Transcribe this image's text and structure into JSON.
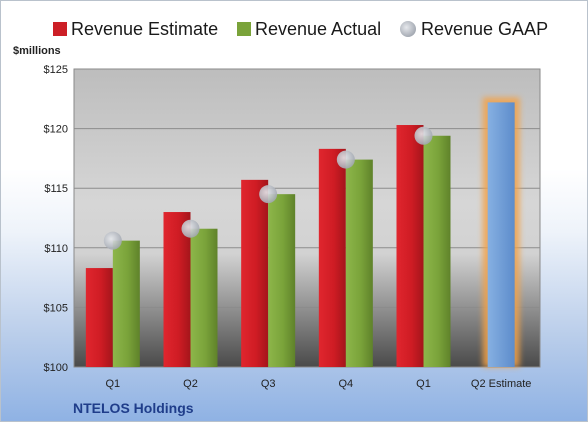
{
  "chart_data": {
    "type": "bar",
    "title": "",
    "units_label": "$millions",
    "company_label": "NTELOS Holdings",
    "categories": [
      "Q1",
      "Q2",
      "Q3",
      "Q4",
      "Q1",
      "Q2 Estimate"
    ],
    "ylim": [
      100,
      125
    ],
    "yticks": [
      "$100",
      "$105",
      "$110",
      "$115",
      "$120",
      "$125"
    ],
    "ytick_values": [
      100,
      105,
      110,
      115,
      120,
      125
    ],
    "grid": true,
    "legend_position": "top",
    "series": [
      {
        "name": "Revenue Estimate",
        "kind": "bar",
        "color": "#cc1f26",
        "values": [
          108.3,
          113.0,
          115.7,
          118.3,
          120.3,
          null
        ]
      },
      {
        "name": "Revenue Actual",
        "kind": "bar",
        "color": "#7aa33a",
        "values": [
          110.6,
          111.6,
          114.5,
          117.4,
          119.4,
          null
        ]
      },
      {
        "name": "Revenue GAAP",
        "kind": "marker",
        "color": "#b0b4bc",
        "values": [
          110.6,
          111.6,
          114.5,
          117.4,
          119.4,
          null
        ]
      },
      {
        "name": "",
        "kind": "highlight-bar",
        "color": "#6f9fd8",
        "values": [
          null,
          null,
          null,
          null,
          null,
          122.2
        ]
      }
    ]
  }
}
